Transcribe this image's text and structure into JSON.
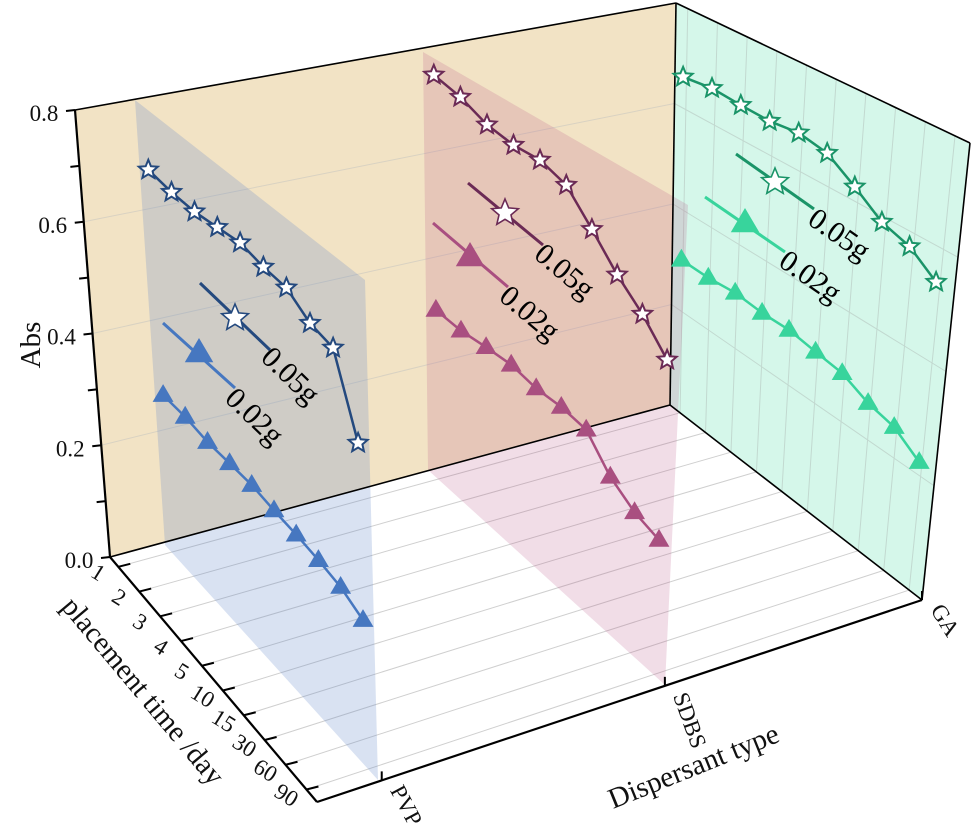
{
  "chart_data": {
    "type": "line",
    "projection": "3d",
    "ylabel": "Abs",
    "xlabel": "placement time /day",
    "zlabel": "Dispersant type",
    "ylim": [
      0,
      0.8
    ],
    "yticks": [
      "0.0",
      "0.2",
      "0.4",
      "0.6",
      "0.8"
    ],
    "x_categories": [
      "1",
      "2",
      "3",
      "4",
      "5",
      "10",
      "15",
      "30",
      "60",
      "90"
    ],
    "z_categories": [
      "PVP",
      "SDBS",
      "GA"
    ],
    "grid": true,
    "colors": {
      "back_wall": "#f2e3c5",
      "side_wall": "#d5f7ea",
      "floor": "#ffffff"
    },
    "series": [
      {
        "group": "PVP",
        "name": "0.05g",
        "marker": "star",
        "color": "#24497e",
        "values": [
          0.688,
          0.682,
          0.681,
          0.687,
          0.693,
          0.684,
          0.681,
          0.654,
          0.645,
          0.523
        ]
      },
      {
        "group": "PVP",
        "name": "0.02g",
        "marker": "triangle",
        "color": "#4677c0",
        "values": [
          0.285,
          0.285,
          0.279,
          0.28,
          0.28,
          0.274,
          0.27,
          0.264,
          0.256,
          0.238
        ]
      },
      {
        "group": "SDBS",
        "name": "0.05g",
        "marker": "star",
        "color": "#6b2a55",
        "values": [
          0.768,
          0.756,
          0.734,
          0.726,
          0.728,
          0.712,
          0.663,
          0.613,
          0.575,
          0.527
        ]
      },
      {
        "group": "SDBS",
        "name": "0.02g",
        "marker": "triangle",
        "color": "#a94f80",
        "values": [
          0.321,
          0.318,
          0.323,
          0.326,
          0.318,
          0.319,
          0.313,
          0.265,
          0.238,
          0.225
        ]
      },
      {
        "group": "GA",
        "name": "0.05g",
        "marker": "star",
        "color": "#1a9468",
        "values": [
          0.663,
          0.67,
          0.666,
          0.664,
          0.67,
          0.66,
          0.626,
          0.59,
          0.574,
          0.539
        ]
      },
      {
        "group": "GA",
        "name": "0.02g",
        "marker": "triangle",
        "color": "#38d49c",
        "values": [
          0.302,
          0.301,
          0.306,
          0.301,
          0.302,
          0.294,
          0.287,
          0.265,
          0.254,
          0.224
        ]
      }
    ]
  }
}
